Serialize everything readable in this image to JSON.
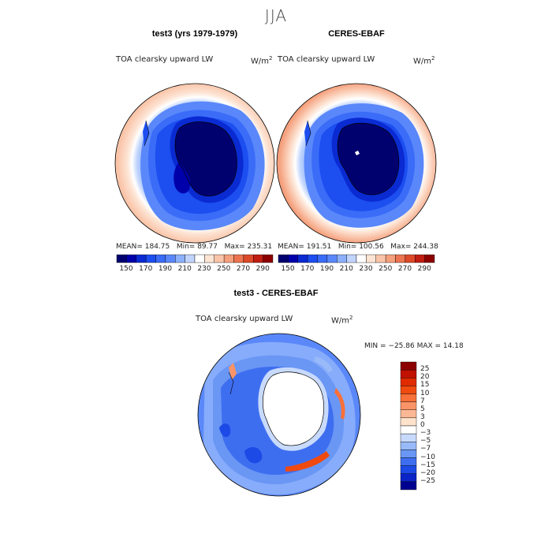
{
  "season": "JJA",
  "panels": [
    {
      "title": "test3 (yrs 1979-1979)",
      "variable": "TOA clearsky upward LW",
      "units_base": "W/m",
      "units_exp": "2",
      "stats": {
        "mean": "MEAN= 184.75",
        "min": "Min=  89.77",
        "max": "Max= 235.31"
      }
    },
    {
      "title": "CERES-EBAF",
      "variable": "TOA clearsky upward LW",
      "units_base": "W/m",
      "units_exp": "2",
      "stats": {
        "mean": "MEAN= 191.51",
        "min": "Min= 100.56",
        "max": "Max= 244.38"
      }
    }
  ],
  "diff_panel": {
    "title": "test3 - CERES-EBAF",
    "variable": "TOA clearsky upward LW",
    "units_base": "W/m",
    "units_exp": "2",
    "minmax": "MIN = −25.86 MAX =  14.18"
  },
  "chart_data": [
    {
      "type": "heatmap",
      "projection": "south-polar-stereographic",
      "title": "test3 (yrs 1979-1979)",
      "variable": "TOA clearsky upward LW",
      "units": "W/m^2",
      "mean": 184.75,
      "min": 89.77,
      "max": 235.31,
      "colorbar": {
        "levels": [
          150,
          160,
          170,
          180,
          190,
          200,
          210,
          220,
          230,
          240,
          250,
          260,
          270,
          280,
          290
        ],
        "tick_labels": [
          "150",
          "170",
          "190",
          "210",
          "230",
          "250",
          "270",
          "290"
        ],
        "colors": [
          "#00006e",
          "#0000aa",
          "#0a2ad2",
          "#1c4ef0",
          "#3a6cf8",
          "#5a88fa",
          "#8cb0fb",
          "#c0d4fd",
          "#ffffff",
          "#fde4d4",
          "#fac4a8",
          "#f5a07c",
          "#ec7450",
          "#dc4a2a",
          "#c01e12",
          "#8c0000"
        ]
      }
    },
    {
      "type": "heatmap",
      "projection": "south-polar-stereographic",
      "title": "CERES-EBAF",
      "variable": "TOA clearsky upward LW",
      "units": "W/m^2",
      "mean": 191.51,
      "min": 100.56,
      "max": 244.38,
      "colorbar": {
        "levels": [
          150,
          160,
          170,
          180,
          190,
          200,
          210,
          220,
          230,
          240,
          250,
          260,
          270,
          280,
          290
        ],
        "tick_labels": [
          "150",
          "170",
          "190",
          "210",
          "230",
          "250",
          "270",
          "290"
        ],
        "colors": [
          "#00006e",
          "#0000aa",
          "#0a2ad2",
          "#1c4ef0",
          "#3a6cf8",
          "#5a88fa",
          "#8cb0fb",
          "#c0d4fd",
          "#ffffff",
          "#fde4d4",
          "#fac4a8",
          "#f5a07c",
          "#ec7450",
          "#dc4a2a",
          "#c01e12",
          "#8c0000"
        ]
      }
    },
    {
      "type": "heatmap",
      "projection": "south-polar-stereographic",
      "title": "test3 - CERES-EBAF",
      "variable": "TOA clearsky upward LW",
      "units": "W/m^2",
      "min": -25.86,
      "max": 14.18,
      "colorbar": {
        "orientation": "vertical",
        "tick_labels": [
          "25",
          "20",
          "15",
          "10",
          "7",
          "5",
          "3",
          "0",
          "−3",
          "−5",
          "−7",
          "−10",
          "−15",
          "−20",
          "−25"
        ],
        "colors": [
          "#8c0000",
          "#c01000",
          "#e02a00",
          "#f04a10",
          "#f8703a",
          "#fa9468",
          "#fcb894",
          "#fee2cc",
          "#ffffff",
          "#c8dafc",
          "#98baf8",
          "#6a96f4",
          "#3e6ef0",
          "#1c4ae6",
          "#0a24c8",
          "#000090"
        ]
      }
    }
  ]
}
